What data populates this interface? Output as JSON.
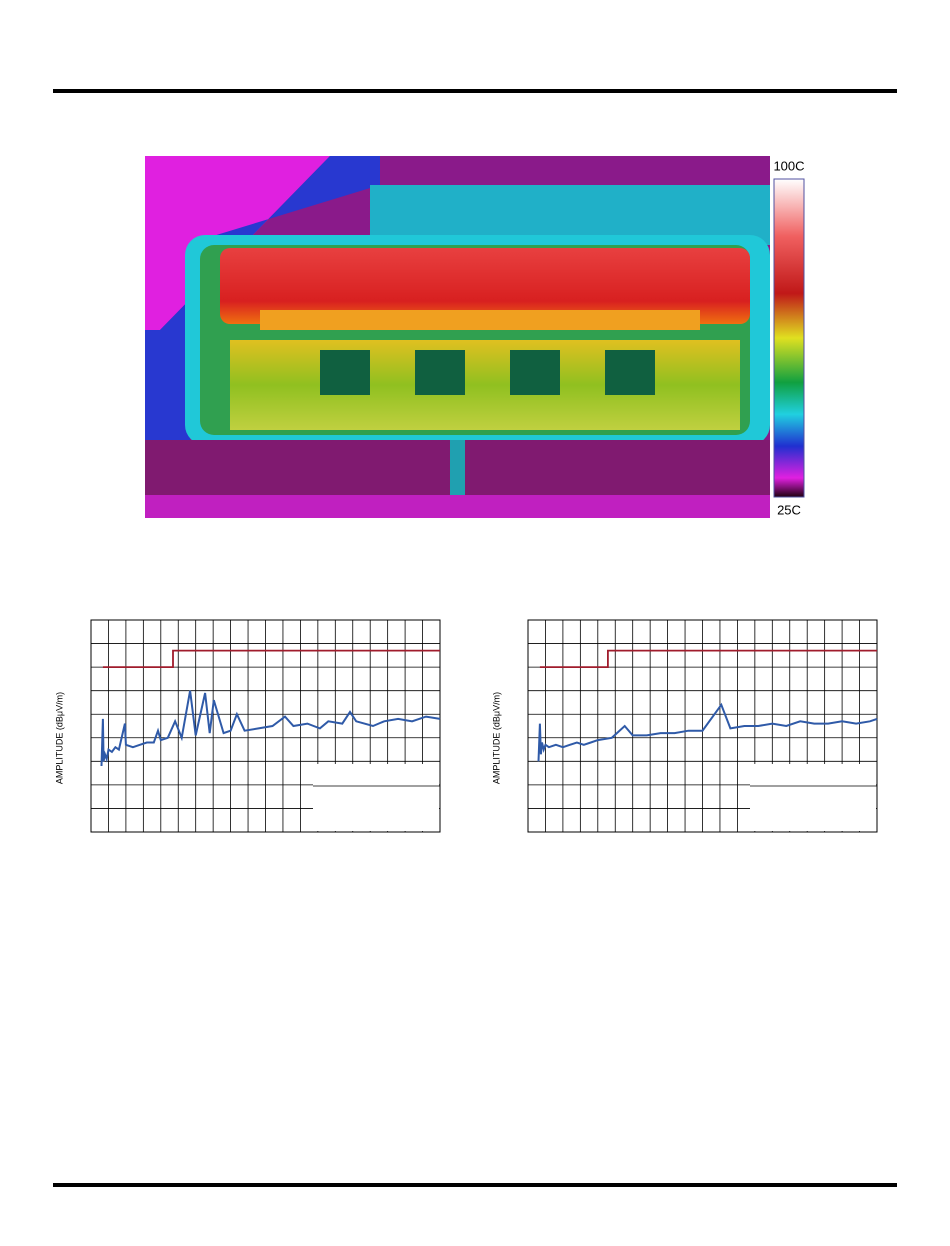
{
  "thermal_image": {
    "max_label": "100C",
    "min_label": "25C"
  },
  "chart_data": [
    {
      "type": "line",
      "y_label": "AMPLITUDE (dBμV/m)",
      "xlim": [
        0,
        1000
      ],
      "ylim": [
        0,
        90
      ],
      "xticks": [
        0,
        50,
        100,
        150,
        200,
        250,
        300,
        350,
        400,
        450,
        500,
        550,
        600,
        650,
        700,
        750,
        800,
        850,
        900,
        950,
        1000
      ],
      "yticks": [
        0,
        10,
        20,
        30,
        40,
        50,
        60,
        70,
        80,
        90
      ],
      "grid": true,
      "series": [
        {
          "color": "#2f5aa8",
          "x": [
            30,
            34,
            36,
            40,
            45,
            50,
            60,
            70,
            80,
            97,
            100,
            120,
            140,
            160,
            180,
            192,
            200,
            220,
            241,
            260,
            284,
            300,
            327,
            340,
            352,
            380,
            400,
            418,
            440,
            480,
            520,
            556,
            580,
            620,
            656,
            680,
            720,
            742,
            760,
            808,
            840,
            880,
            920,
            960,
            1000
          ],
          "values": [
            28,
            48,
            30,
            33,
            31,
            35,
            34,
            36,
            35,
            46,
            37,
            36,
            37,
            38,
            38,
            43,
            39,
            40,
            47,
            40,
            60,
            41,
            59,
            42,
            56,
            42,
            43,
            50,
            43,
            44,
            45,
            49,
            45,
            46,
            44,
            47,
            46,
            51,
            47,
            45,
            47,
            48,
            47,
            49,
            48
          ]
        },
        {
          "color": "#a01c2c",
          "x": [
            34,
            235,
            235,
            1000
          ],
          "values": [
            70,
            70,
            77,
            77
          ]
        }
      ]
    },
    {
      "type": "line",
      "y_label": "AMPLITUDE (dBμV/m)",
      "xlim": [
        0,
        1000
      ],
      "ylim": [
        0,
        90
      ],
      "xticks": [
        0,
        50,
        100,
        150,
        200,
        250,
        300,
        350,
        400,
        450,
        500,
        550,
        600,
        650,
        700,
        750,
        800,
        850,
        900,
        950,
        1000
      ],
      "yticks": [
        0,
        10,
        20,
        30,
        40,
        50,
        60,
        70,
        80,
        90
      ],
      "grid": true,
      "series": [
        {
          "color": "#2f5aa8",
          "x": [
            30,
            34,
            37,
            40,
            45,
            50,
            60,
            80,
            100,
            120,
            140,
            160,
            180,
            200,
            240,
            277,
            300,
            340,
            380,
            420,
            460,
            500,
            554,
            580,
            620,
            660,
            700,
            740,
            780,
            820,
            860,
            900,
            940,
            980,
            1000
          ],
          "values": [
            30,
            46,
            33,
            38,
            35,
            37,
            36,
            37,
            36,
            37,
            38,
            37,
            38,
            39,
            40,
            45,
            41,
            41,
            42,
            42,
            43,
            43,
            54,
            44,
            45,
            45,
            46,
            45,
            47,
            46,
            46,
            47,
            46,
            47,
            48
          ]
        },
        {
          "color": "#a01c2c",
          "x": [
            34,
            229,
            229,
            1000
          ],
          "values": [
            70,
            70,
            77,
            77
          ]
        }
      ]
    }
  ]
}
